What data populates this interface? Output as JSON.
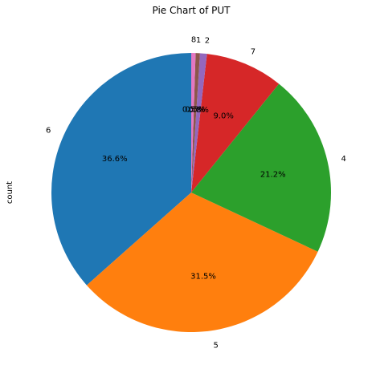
{
  "chart_data": {
    "type": "pie",
    "title": "Pie Chart of PUT",
    "ylabel": "count",
    "slices": [
      {
        "label": "6",
        "pct": 36.6,
        "pct_label": "36.6%",
        "color": "#1f77b4"
      },
      {
        "label": "5",
        "pct": 31.5,
        "pct_label": "31.5%",
        "color": "#ff7f0e"
      },
      {
        "label": "4",
        "pct": 21.2,
        "pct_label": "21.2%",
        "color": "#2ca02c"
      },
      {
        "label": "7",
        "pct": 9.0,
        "pct_label": "9.0%",
        "color": "#d62728"
      },
      {
        "label": "2",
        "pct": 0.8,
        "pct_label": "0.8%",
        "color": "#9467bd"
      },
      {
        "label": "1",
        "pct": 0.5,
        "pct_label": "0.5%",
        "color": "#8c564b"
      },
      {
        "label": "8",
        "pct": 0.5,
        "pct_label": "0.5%",
        "color": "#e377c2"
      }
    ]
  }
}
